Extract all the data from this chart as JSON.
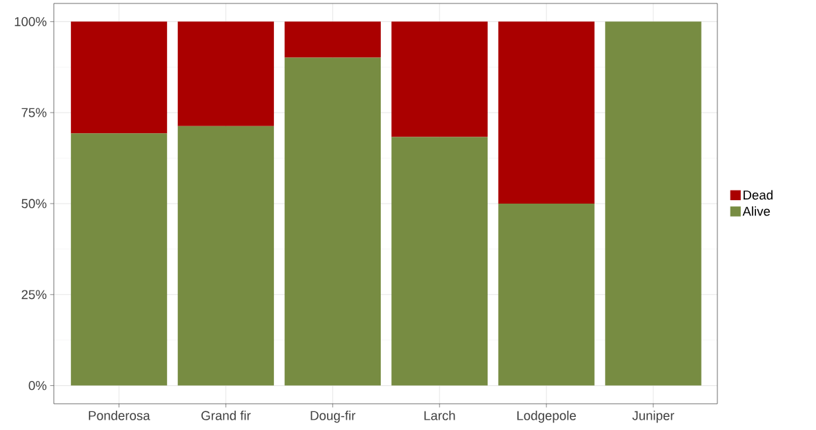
{
  "chart_data": {
    "type": "bar",
    "stacked": true,
    "categories": [
      "Ponderosa",
      "Grand fir",
      "Doug-fir",
      "Larch",
      "Lodgepole",
      "Juniper"
    ],
    "series": [
      {
        "name": "Alive",
        "color": "#778c42",
        "values": [
          69.3,
          71.3,
          90.1,
          68.3,
          50,
          100
        ]
      },
      {
        "name": "Dead",
        "color": "#aa0000",
        "values": [
          30.7,
          28.7,
          9.9,
          31.7,
          50,
          0
        ]
      }
    ],
    "ylim": [
      -5,
      105
    ],
    "yticks": [
      {
        "value": 0,
        "label": "0%"
      },
      {
        "value": 25,
        "label": "25%"
      },
      {
        "value": 50,
        "label": "50%"
      },
      {
        "value": 75,
        "label": "75%"
      },
      {
        "value": 100,
        "label": "100%"
      }
    ],
    "grid": true,
    "legend": "right"
  }
}
